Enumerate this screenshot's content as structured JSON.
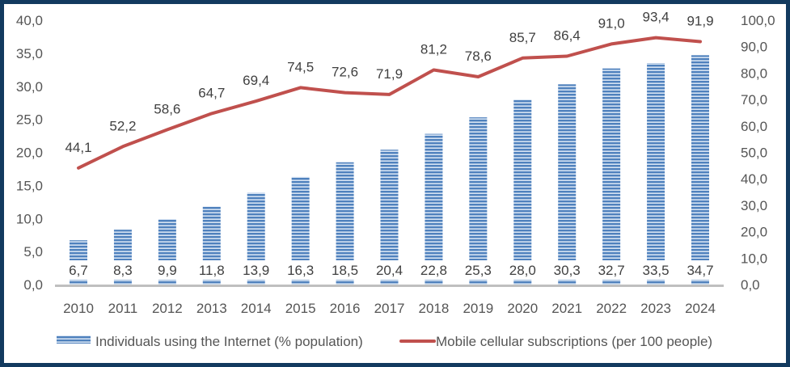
{
  "chart_data": {
    "type": "bar",
    "title": "",
    "xlabel": "",
    "ylabel": "",
    "categories": [
      "2010",
      "2011",
      "2012",
      "2013",
      "2014",
      "2015",
      "2016",
      "2017",
      "2018",
      "2019",
      "2020",
      "2021",
      "2022",
      "2023",
      "2024"
    ],
    "series": [
      {
        "name": "Individuals using the Internet (% population)",
        "type": "bar",
        "axis": "left",
        "color": "#4f81bd",
        "values": [
          6.7,
          8.3,
          9.9,
          11.8,
          13.9,
          16.3,
          18.5,
          20.4,
          22.8,
          25.3,
          28.0,
          30.3,
          32.7,
          33.5,
          34.7
        ],
        "labels": [
          "6,7",
          "8,3",
          "9,9",
          "11,8",
          "13,9",
          "16,3",
          "18,5",
          "20,4",
          "22,8",
          "25,3",
          "28,0",
          "30,3",
          "32,7",
          "33,5",
          "34,7"
        ]
      },
      {
        "name": "Mobile cellular subscriptions (per 100 people)",
        "type": "line",
        "axis": "right",
        "color": "#c0504d",
        "values": [
          44.1,
          52.2,
          58.6,
          64.7,
          69.4,
          74.5,
          72.6,
          71.9,
          81.2,
          78.6,
          85.7,
          86.4,
          91.0,
          93.4,
          91.9
        ],
        "labels": [
          "44,1",
          "52,2",
          "58,6",
          "64,7",
          "69,4",
          "74,5",
          "72,6",
          "71,9",
          "81,2",
          "78,6",
          "85,7",
          "86,4",
          "91,0",
          "93,4",
          "91,9"
        ]
      }
    ],
    "y_left": {
      "ylim": [
        0,
        40
      ],
      "ticks": [
        0,
        5,
        10,
        15,
        20,
        25,
        30,
        35,
        40
      ],
      "tick_labels": [
        "0,0",
        "5,0",
        "10,0",
        "15,0",
        "20,0",
        "25,0",
        "30,0",
        "35,0",
        "40,0"
      ]
    },
    "y_right": {
      "ylim": [
        0,
        100
      ],
      "ticks": [
        0,
        10,
        20,
        30,
        40,
        50,
        60,
        70,
        80,
        90,
        100
      ],
      "tick_labels": [
        "0,0",
        "10,0",
        "20,0",
        "30,0",
        "40,0",
        "50,0",
        "60,0",
        "70,0",
        "80,0",
        "90,0",
        "100,0"
      ]
    },
    "grid": false,
    "legend_position": "bottom",
    "frame_color": "#123a5f",
    "axis_line_color": "#bfbfbf"
  }
}
